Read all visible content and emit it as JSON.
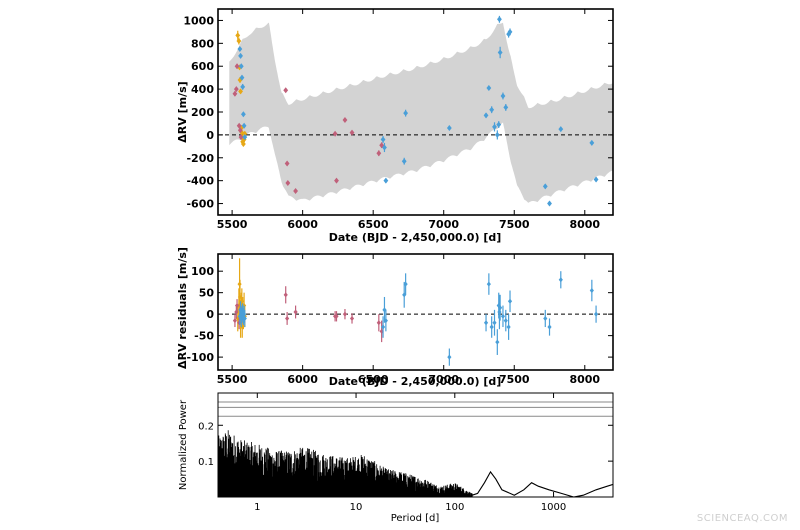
{
  "colors": {
    "band": "#d3d3d3",
    "harps": "#e6a817",
    "hires": "#c0607a",
    "pfs": "#4a9fd8",
    "hline": "#000000",
    "periodogram": "#000000",
    "fap_lines": "#8a8a8a"
  },
  "watermark": "SCIENCEAQ.COM",
  "chart_data": [
    {
      "type": "scatter",
      "panel": "rv",
      "xlabel": "Date (BJD - 2,450,000.0) [d]",
      "ylabel": "ΔRV [m/s]",
      "xlim": [
        5400,
        8200
      ],
      "ylim": [
        -700,
        1100
      ],
      "xticks": [
        5500,
        6000,
        6500,
        7000,
        7500,
        8000
      ],
      "yticks": [
        -600,
        -400,
        -200,
        0,
        200,
        400,
        600,
        800,
        1000
      ],
      "zero_line": true,
      "model_band": {
        "upper": [
          [
            5480,
            640
          ],
          [
            5560,
            820
          ],
          [
            5620,
            900
          ],
          [
            5700,
            960
          ],
          [
            5760,
            990
          ],
          [
            5800,
            700
          ],
          [
            5850,
            380
          ],
          [
            5900,
            290
          ],
          [
            6000,
            330
          ],
          [
            6200,
            400
          ],
          [
            6400,
            470
          ],
          [
            6600,
            540
          ],
          [
            6800,
            600
          ],
          [
            7000,
            680
          ],
          [
            7200,
            780
          ],
          [
            7300,
            850
          ],
          [
            7380,
            970
          ],
          [
            7420,
            1010
          ],
          [
            7460,
            760
          ],
          [
            7520,
            460
          ],
          [
            7600,
            260
          ],
          [
            7800,
            320
          ],
          [
            8000,
            400
          ],
          [
            8200,
            480
          ]
        ],
        "lower": [
          [
            5480,
            -90
          ],
          [
            5560,
            -60
          ],
          [
            5620,
            -10
          ],
          [
            5700,
            30
          ],
          [
            5760,
            60
          ],
          [
            5800,
            -180
          ],
          [
            5850,
            -420
          ],
          [
            5900,
            -560
          ],
          [
            6000,
            -590
          ],
          [
            6200,
            -530
          ],
          [
            6400,
            -460
          ],
          [
            6600,
            -390
          ],
          [
            6800,
            -330
          ],
          [
            7000,
            -240
          ],
          [
            7200,
            -130
          ],
          [
            7300,
            -40
          ],
          [
            7380,
            50
          ],
          [
            7420,
            80
          ],
          [
            7460,
            -160
          ],
          [
            7520,
            -470
          ],
          [
            7600,
            -620
          ],
          [
            7800,
            -520
          ],
          [
            8000,
            -430
          ],
          [
            8200,
            -340
          ]
        ]
      },
      "series": [
        {
          "key": "harps",
          "points": [
            [
              5540,
              870,
              40
            ],
            [
              5548,
              820,
              30
            ],
            [
              5553,
              590,
              20
            ],
            [
              5556,
              480,
              25
            ],
            [
              5560,
              380,
              20
            ],
            [
              5565,
              60,
              25
            ],
            [
              5569,
              20,
              20
            ],
            [
              5572,
              -20,
              20
            ],
            [
              5575,
              -60,
              20
            ],
            [
              5580,
              -80,
              20
            ],
            [
              5585,
              -40,
              15
            ],
            [
              5590,
              10,
              20
            ]
          ]
        },
        {
          "key": "hires",
          "points": [
            [
              5520,
              360,
              20
            ],
            [
              5530,
              400,
              20
            ],
            [
              5535,
              600,
              20
            ],
            [
              5550,
              80,
              15
            ],
            [
              5558,
              40,
              15
            ],
            [
              5563,
              -20,
              15
            ],
            [
              5880,
              390,
              15
            ],
            [
              5890,
              -250,
              15
            ],
            [
              5895,
              -420,
              15
            ],
            [
              5950,
              -490,
              15
            ],
            [
              6230,
              10,
              15
            ],
            [
              6240,
              -400,
              15
            ],
            [
              6300,
              130,
              15
            ],
            [
              6350,
              20,
              15
            ],
            [
              6540,
              -160,
              25
            ],
            [
              6560,
              -90,
              25
            ]
          ]
        },
        {
          "key": "pfs",
          "points": [
            [
              5555,
              750,
              20
            ],
            [
              5560,
              690,
              20
            ],
            [
              5565,
              600,
              20
            ],
            [
              5570,
              500,
              20
            ],
            [
              5575,
              420,
              25
            ],
            [
              5580,
              180,
              20
            ],
            [
              5585,
              80,
              20
            ],
            [
              5590,
              -20,
              20
            ],
            [
              6570,
              -40,
              30
            ],
            [
              6580,
              -110,
              40
            ],
            [
              6590,
              -400,
              20
            ],
            [
              6720,
              -230,
              30
            ],
            [
              6730,
              190,
              30
            ],
            [
              7040,
              60,
              20
            ],
            [
              7300,
              170,
              20
            ],
            [
              7320,
              410,
              20
            ],
            [
              7340,
              220,
              30
            ],
            [
              7360,
              70,
              40
            ],
            [
              7380,
              0,
              40
            ],
            [
              7390,
              90,
              30
            ],
            [
              7395,
              1010,
              30
            ],
            [
              7400,
              720,
              50
            ],
            [
              7420,
              340,
              30
            ],
            [
              7440,
              240,
              30
            ],
            [
              7460,
              880,
              30
            ],
            [
              7470,
              900,
              30
            ],
            [
              7720,
              -450,
              20
            ],
            [
              7750,
              -600,
              20
            ],
            [
              7830,
              50,
              20
            ],
            [
              8050,
              -70,
              20
            ],
            [
              8080,
              -390,
              20
            ]
          ]
        }
      ]
    },
    {
      "type": "scatter",
      "panel": "residuals",
      "xlabel": "Date (BJD - 2,450,000.0) [d]",
      "ylabel": "ΔRV residuals [m/s]",
      "xlim": [
        5400,
        8200
      ],
      "ylim": [
        -130,
        140
      ],
      "xticks": [
        5500,
        6000,
        6500,
        7000,
        7500,
        8000
      ],
      "yticks": [
        -100,
        -50,
        0,
        50,
        100
      ],
      "zero_line": true,
      "series": [
        {
          "key": "harps",
          "points": [
            [
              5540,
              -10,
              30
            ],
            [
              5548,
              20,
              40
            ],
            [
              5553,
              70,
              60
            ],
            [
              5556,
              40,
              40
            ],
            [
              5560,
              -20,
              35
            ],
            [
              5565,
              10,
              40
            ],
            [
              5569,
              30,
              30
            ],
            [
              5572,
              -30,
              25
            ],
            [
              5575,
              10,
              30
            ],
            [
              5580,
              -10,
              25
            ],
            [
              5585,
              20,
              30
            ],
            [
              5590,
              -5,
              25
            ]
          ]
        },
        {
          "key": "hires",
          "points": [
            [
              5520,
              -15,
              15
            ],
            [
              5530,
              5,
              15
            ],
            [
              5535,
              20,
              15
            ],
            [
              5550,
              -20,
              15
            ],
            [
              5558,
              10,
              15
            ],
            [
              5563,
              0,
              15
            ],
            [
              5880,
              45,
              20
            ],
            [
              5890,
              -10,
              15
            ],
            [
              5950,
              5,
              15
            ],
            [
              6230,
              -5,
              12
            ],
            [
              6240,
              -5,
              12
            ],
            [
              6300,
              0,
              12
            ],
            [
              6350,
              -10,
              12
            ],
            [
              6540,
              -20,
              20
            ],
            [
              6560,
              -40,
              25
            ]
          ]
        },
        {
          "key": "pfs",
          "points": [
            [
              5555,
              -5,
              20
            ],
            [
              5560,
              10,
              20
            ],
            [
              5565,
              -10,
              20
            ],
            [
              5570,
              0,
              20
            ],
            [
              5575,
              5,
              20
            ],
            [
              5580,
              -5,
              20
            ],
            [
              5585,
              0,
              20
            ],
            [
              5590,
              -10,
              20
            ],
            [
              6570,
              -30,
              25
            ],
            [
              6580,
              10,
              30
            ],
            [
              6590,
              -15,
              25
            ],
            [
              6720,
              45,
              30
            ],
            [
              6730,
              70,
              25
            ],
            [
              7040,
              -100,
              20
            ],
            [
              7300,
              -20,
              20
            ],
            [
              7320,
              70,
              25
            ],
            [
              7340,
              -30,
              25
            ],
            [
              7360,
              -20,
              30
            ],
            [
              7380,
              -65,
              30
            ],
            [
              7390,
              20,
              30
            ],
            [
              7395,
              5,
              40
            ],
            [
              7400,
              15,
              30
            ],
            [
              7420,
              -5,
              25
            ],
            [
              7440,
              -15,
              25
            ],
            [
              7460,
              -30,
              30
            ],
            [
              7470,
              30,
              25
            ],
            [
              7720,
              -10,
              20
            ],
            [
              7750,
              -30,
              20
            ],
            [
              7830,
              80,
              20
            ],
            [
              8050,
              55,
              25
            ],
            [
              8080,
              0,
              20
            ]
          ]
        }
      ]
    },
    {
      "type": "line",
      "panel": "periodogram",
      "xlabel": "Period [d]",
      "ylabel": "Normalized Power",
      "xscale": "log",
      "xlim": [
        0.4,
        4000
      ],
      "ylim": [
        0,
        0.29
      ],
      "xticks": [
        1,
        10,
        100,
        1000
      ],
      "xticklabels": [
        "1",
        "10",
        "100",
        "1000"
      ],
      "yticks": [
        0.1,
        0.2
      ],
      "yticklabels": [
        "0.1",
        "0.2"
      ],
      "fap_levels": [
        0.225,
        0.25,
        0.265
      ],
      "envelope": [
        [
          0.4,
          0.17
        ],
        [
          0.5,
          0.19
        ],
        [
          0.7,
          0.16
        ],
        [
          1,
          0.15
        ],
        [
          1.5,
          0.13
        ],
        [
          2,
          0.13
        ],
        [
          3,
          0.14
        ],
        [
          5,
          0.12
        ],
        [
          8,
          0.11
        ],
        [
          12,
          0.12
        ],
        [
          20,
          0.08
        ],
        [
          30,
          0.07
        ],
        [
          50,
          0.05
        ],
        [
          70,
          0.03
        ],
        [
          100,
          0.04
        ],
        [
          150,
          0.01
        ]
      ],
      "long_period_curve": [
        [
          150,
          0.005
        ],
        [
          170,
          0.01
        ],
        [
          200,
          0.04
        ],
        [
          230,
          0.07
        ],
        [
          260,
          0.05
        ],
        [
          300,
          0.02
        ],
        [
          400,
          0.005
        ],
        [
          500,
          0.02
        ],
        [
          600,
          0.04
        ],
        [
          700,
          0.03
        ],
        [
          900,
          0.02
        ],
        [
          1200,
          0.01
        ],
        [
          1600,
          0.0
        ],
        [
          2000,
          0.005
        ],
        [
          2700,
          0.02
        ],
        [
          3500,
          0.03
        ],
        [
          4000,
          0.035
        ]
      ]
    }
  ]
}
